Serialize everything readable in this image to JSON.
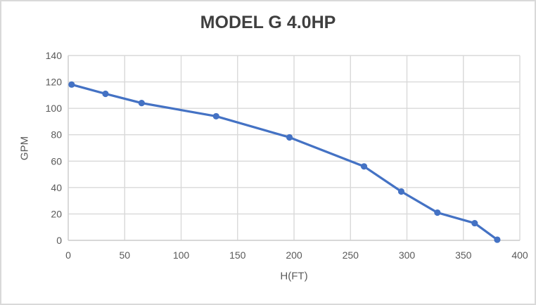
{
  "window": {
    "background_color": "#ffffff",
    "border_color": "#d9d9d9"
  },
  "chart_data": {
    "type": "line",
    "title": "MODEL G 4.0HP",
    "xlabel": "H(FT)",
    "ylabel": "GPM",
    "xlim": [
      0,
      400
    ],
    "ylim": [
      0,
      140
    ],
    "xticks": [
      0,
      50,
      100,
      150,
      200,
      250,
      300,
      350,
      400
    ],
    "yticks": [
      0,
      20,
      40,
      60,
      80,
      100,
      120,
      140
    ],
    "grid": true,
    "legend": false,
    "marker": "circle",
    "series": [
      {
        "name": "GPM vs H(FT)",
        "x": [
          3,
          33,
          65,
          131,
          196,
          262,
          295,
          327,
          360,
          380
        ],
        "y": [
          118,
          111,
          104,
          94,
          78,
          56,
          37,
          21,
          13,
          0.5
        ]
      }
    ],
    "colors": {
      "line": "#4472c4",
      "marker": "#4472c4",
      "gridline": "#d9d9d9",
      "axis_line": "#d0d0d0",
      "tick_text": "#595959",
      "title_text": "#3f3f3f",
      "axis_title_text": "#595959"
    }
  }
}
